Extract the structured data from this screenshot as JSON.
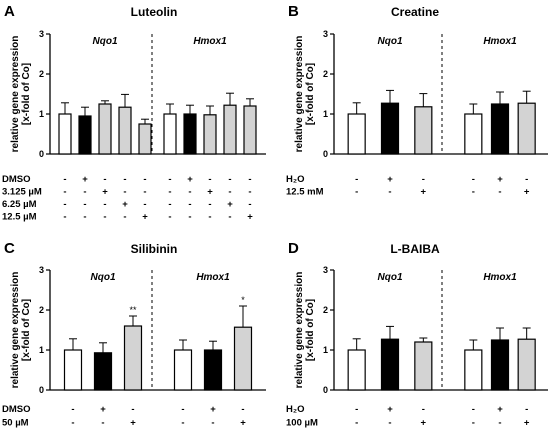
{
  "chart_data": [
    {
      "panel": "A",
      "type": "bar",
      "title": "Luteolin",
      "ylabel": "relative gene expression\n[x-fold of Co]",
      "ylim": [
        0,
        3
      ],
      "yticks": [
        0,
        1,
        2,
        3
      ],
      "groups": [
        {
          "name": "Nqo1",
          "bars": [
            {
              "value": 1.0,
              "error": 0.28,
              "color": "#ffffff"
            },
            {
              "value": 0.95,
              "error": 0.22,
              "color": "#000000"
            },
            {
              "value": 1.25,
              "error": 0.08,
              "color": "#d3d3d3"
            },
            {
              "value": 1.17,
              "error": 0.32,
              "color": "#d3d3d3"
            },
            {
              "value": 0.75,
              "error": 0.12,
              "color": "#d3d3d3"
            }
          ],
          "marks": [
            [
              "-",
              "+",
              "-",
              "-",
              "-"
            ],
            [
              "-",
              "-",
              "+",
              "-",
              "-"
            ],
            [
              "-",
              "-",
              "-",
              "+",
              "-"
            ],
            [
              "-",
              "-",
              "-",
              "-",
              "+"
            ]
          ]
        },
        {
          "name": "Hmox1",
          "bars": [
            {
              "value": 1.0,
              "error": 0.25,
              "color": "#ffffff"
            },
            {
              "value": 1.0,
              "error": 0.22,
              "color": "#000000"
            },
            {
              "value": 0.98,
              "error": 0.22,
              "color": "#d3d3d3"
            },
            {
              "value": 1.22,
              "error": 0.3,
              "color": "#d3d3d3"
            },
            {
              "value": 1.2,
              "error": 0.18,
              "color": "#d3d3d3"
            }
          ],
          "marks": [
            [
              "-",
              "+",
              "-",
              "-",
              "-"
            ],
            [
              "-",
              "-",
              "+",
              "-",
              "-"
            ],
            [
              "-",
              "-",
              "-",
              "+",
              "-"
            ],
            [
              "-",
              "-",
              "-",
              "-",
              "+"
            ]
          ]
        }
      ],
      "conditions": [
        "DMSO",
        "3.125 µM",
        "6.25 µM",
        "12.5 µM"
      ]
    },
    {
      "panel": "B",
      "type": "bar",
      "title": "Creatine",
      "ylabel": "relative gene expression\n[x-fold of Co]",
      "ylim": [
        0,
        3
      ],
      "yticks": [
        0,
        1,
        2,
        3
      ],
      "groups": [
        {
          "name": "Nqo1",
          "bars": [
            {
              "value": 1.0,
              "error": 0.28,
              "color": "#ffffff"
            },
            {
              "value": 1.27,
              "error": 0.32,
              "color": "#000000"
            },
            {
              "value": 1.18,
              "error": 0.33,
              "color": "#d3d3d3"
            }
          ],
          "marks": [
            [
              "-",
              "+",
              "-"
            ],
            [
              "-",
              "-",
              "+"
            ]
          ]
        },
        {
          "name": "Hmox1",
          "bars": [
            {
              "value": 1.0,
              "error": 0.25,
              "color": "#ffffff"
            },
            {
              "value": 1.25,
              "error": 0.3,
              "color": "#000000"
            },
            {
              "value": 1.27,
              "error": 0.3,
              "color": "#d3d3d3"
            }
          ],
          "marks": [
            [
              "-",
              "+",
              "-"
            ],
            [
              "-",
              "-",
              "+"
            ]
          ]
        }
      ],
      "conditions": [
        "H₂O",
        "12.5 mM"
      ]
    },
    {
      "panel": "C",
      "type": "bar",
      "title": "Silibinin",
      "ylabel": "relative gene expression\n[x-fold of Co]",
      "ylim": [
        0,
        3
      ],
      "yticks": [
        0,
        1,
        2,
        3
      ],
      "groups": [
        {
          "name": "Nqo1",
          "bars": [
            {
              "value": 1.0,
              "error": 0.28,
              "color": "#ffffff"
            },
            {
              "value": 0.93,
              "error": 0.25,
              "color": "#000000"
            },
            {
              "value": 1.6,
              "error": 0.25,
              "color": "#d3d3d3",
              "sig": "**"
            }
          ],
          "marks": [
            [
              "-",
              "+",
              "-"
            ],
            [
              "-",
              "-",
              "+"
            ]
          ]
        },
        {
          "name": "Hmox1",
          "bars": [
            {
              "value": 1.0,
              "error": 0.25,
              "color": "#ffffff"
            },
            {
              "value": 1.0,
              "error": 0.22,
              "color": "#000000"
            },
            {
              "value": 1.57,
              "error": 0.53,
              "color": "#d3d3d3",
              "sig": "*"
            }
          ],
          "marks": [
            [
              "-",
              "+",
              "-"
            ],
            [
              "-",
              "-",
              "+"
            ]
          ]
        }
      ],
      "conditions": [
        "DMSO",
        "50 µM"
      ]
    },
    {
      "panel": "D",
      "type": "bar",
      "title": "L-BAIBA",
      "ylabel": "relative gene expression\n[x-fold of Co]",
      "ylim": [
        0,
        3
      ],
      "yticks": [
        0,
        1,
        2,
        3
      ],
      "groups": [
        {
          "name": "Nqo1",
          "bars": [
            {
              "value": 1.0,
              "error": 0.28,
              "color": "#ffffff"
            },
            {
              "value": 1.27,
              "error": 0.32,
              "color": "#000000"
            },
            {
              "value": 1.2,
              "error": 0.1,
              "color": "#d3d3d3"
            }
          ],
          "marks": [
            [
              "-",
              "+",
              "-"
            ],
            [
              "-",
              "-",
              "+"
            ]
          ]
        },
        {
          "name": "Hmox1",
          "bars": [
            {
              "value": 1.0,
              "error": 0.25,
              "color": "#ffffff"
            },
            {
              "value": 1.25,
              "error": 0.3,
              "color": "#000000"
            },
            {
              "value": 1.27,
              "error": 0.28,
              "color": "#d3d3d3"
            }
          ],
          "marks": [
            [
              "-",
              "+",
              "-"
            ],
            [
              "-",
              "-",
              "+"
            ]
          ]
        }
      ],
      "conditions": [
        "H₂O",
        "100 µM"
      ]
    }
  ]
}
